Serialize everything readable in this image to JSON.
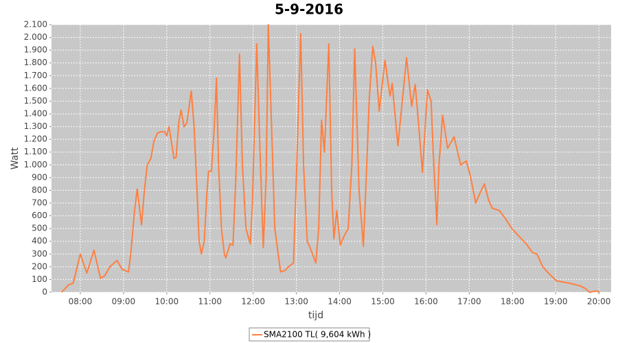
{
  "chart_data": {
    "type": "line",
    "title": "5-9-2016",
    "xlabel": "tijd",
    "ylabel": "Watt",
    "x": [
      "07:34",
      "07:44",
      "07:50",
      "08:00",
      "08:09",
      "08:19",
      "08:28",
      "08:34",
      "08:41",
      "08:51",
      "08:58",
      "09:07",
      "09:10",
      "09:15",
      "09:19",
      "09:25",
      "09:29",
      "09:33",
      "09:38",
      "09:42",
      "09:47",
      "09:52",
      "09:57",
      "10:00",
      "10:03",
      "10:06",
      "10:10",
      "10:13",
      "10:17",
      "10:20",
      "10:24",
      "10:28",
      "10:34",
      "10:38",
      "10:42",
      "10:45",
      "10:48",
      "10:52",
      "10:56",
      "10:58",
      "11:02",
      "11:06",
      "11:09",
      "11:12",
      "11:16",
      "11:20",
      "11:22",
      "11:28",
      "11:32",
      "11:36",
      "11:41",
      "11:45",
      "11:50",
      "11:56",
      "11:59",
      "12:05",
      "12:09",
      "12:14",
      "12:18",
      "12:21",
      "12:25",
      "12:30",
      "12:38",
      "12:44",
      "12:49",
      "12:56",
      "13:00",
      "13:06",
      "13:10",
      "13:15",
      "13:19",
      "13:27",
      "13:31",
      "13:35",
      "13:39",
      "13:45",
      "13:49",
      "13:52",
      "13:56",
      "14:01",
      "14:07",
      "14:12",
      "14:17",
      "14:21",
      "14:27",
      "14:33",
      "14:37",
      "14:41",
      "14:46",
      "14:50",
      "14:55",
      "15:03",
      "15:10",
      "15:13",
      "15:21",
      "15:27",
      "15:33",
      "15:40",
      "15:45",
      "15:50",
      "15:55",
      "16:02",
      "16:07",
      "16:10",
      "16:15",
      "16:18",
      "16:23",
      "16:30",
      "16:39",
      "16:48",
      "16:56",
      "17:02",
      "17:09",
      "17:15",
      "17:21",
      "17:27",
      "17:32",
      "17:42",
      "17:50",
      "17:59",
      "18:09",
      "18:19",
      "18:28",
      "18:34",
      "18:42",
      "18:50",
      "19:01",
      "19:10",
      "19:20",
      "19:34",
      "19:41",
      "19:47",
      "19:56",
      "20:01"
    ],
    "series": [
      {
        "name": "SMA2100 TL( 9,604 kWh )",
        "color": "#ff7f3f",
        "values": [
          0,
          60,
          70,
          300,
          150,
          330,
          110,
          130,
          200,
          250,
          180,
          160,
          300,
          620,
          810,
          530,
          800,
          1000,
          1050,
          1180,
          1250,
          1260,
          1260,
          1230,
          1300,
          1200,
          1050,
          1060,
          1350,
          1430,
          1300,
          1330,
          1580,
          1300,
          800,
          400,
          300,
          400,
          800,
          950,
          950,
          1300,
          1680,
          1000,
          500,
          300,
          270,
          380,
          370,
          900,
          1870,
          1000,
          500,
          380,
          700,
          1950,
          1200,
          350,
          900,
          2100,
          1400,
          500,
          160,
          170,
          200,
          230,
          900,
          2030,
          1000,
          400,
          350,
          230,
          500,
          1350,
          1100,
          1950,
          800,
          420,
          640,
          370,
          450,
          500,
          1000,
          1910,
          800,
          360,
          900,
          1500,
          1930,
          1800,
          1420,
          1820,
          1540,
          1640,
          1150,
          1500,
          1840,
          1460,
          1630,
          1300,
          940,
          1590,
          1500,
          1100,
          530,
          1000,
          1390,
          1130,
          1220,
          1000,
          1030,
          900,
          700,
          780,
          850,
          720,
          660,
          640,
          580,
          500,
          440,
          380,
          310,
          300,
          200,
          150,
          90,
          80,
          70,
          50,
          30,
          0,
          10,
          0
        ]
      }
    ],
    "xlim": [
      "07:20",
      "20:17"
    ],
    "xticks": [
      "08:00",
      "09:00",
      "10:00",
      "11:00",
      "12:00",
      "13:00",
      "14:00",
      "15:00",
      "16:00",
      "17:00",
      "18:00",
      "19:00",
      "20:00"
    ],
    "ylim": [
      0,
      2100
    ],
    "yticks": [
      0,
      100,
      200,
      300,
      400,
      500,
      600,
      700,
      800,
      900,
      {
        "value": 1000,
        "label": "1.000"
      },
      {
        "value": 1100,
        "label": "1.100"
      },
      {
        "value": 1200,
        "label": "1.200"
      },
      {
        "value": 1300,
        "label": "1.300"
      },
      {
        "value": 1400,
        "label": "1.400"
      },
      {
        "value": 1500,
        "label": "1.500"
      },
      {
        "value": 1600,
        "label": "1.600"
      },
      {
        "value": 1700,
        "label": "1.700"
      },
      {
        "value": 1800,
        "label": "1.800"
      },
      {
        "value": 1900,
        "label": "1.900"
      },
      {
        "value": 2000,
        "label": "2.000"
      },
      {
        "value": 2100,
        "label": "2.100"
      }
    ],
    "grid": true
  }
}
